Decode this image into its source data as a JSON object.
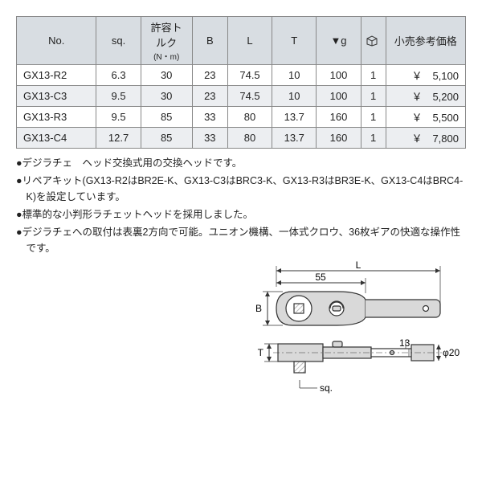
{
  "table": {
    "headers": {
      "no": "No.",
      "sq": "sq.",
      "torque": "許容トルク",
      "torque_unit": "(N・m)",
      "B": "B",
      "L": "L",
      "T": "T",
      "g": "▼g",
      "box": "☐",
      "price": "小売参考価格"
    },
    "rows": [
      {
        "no": "GX13-R2",
        "sq": "6.3",
        "torque": "30",
        "B": "23",
        "L": "74.5",
        "T": "10",
        "g": "100",
        "box": "1",
        "price": "￥　5,100",
        "alt": false
      },
      {
        "no": "GX13-C3",
        "sq": "9.5",
        "torque": "30",
        "B": "23",
        "L": "74.5",
        "T": "10",
        "g": "100",
        "box": "1",
        "price": "￥　5,200",
        "alt": true
      },
      {
        "no": "GX13-R3",
        "sq": "9.5",
        "torque": "85",
        "B": "33",
        "L": "80",
        "T": "13.7",
        "g": "160",
        "box": "1",
        "price": "￥　5,500",
        "alt": false
      },
      {
        "no": "GX13-C4",
        "sq": "12.7",
        "torque": "85",
        "B": "33",
        "L": "80",
        "T": "13.7",
        "g": "160",
        "box": "1",
        "price": "￥　7,800",
        "alt": true
      }
    ],
    "col_widths": [
      "90",
      "50",
      "58",
      "40",
      "50",
      "50",
      "50",
      "28",
      "90"
    ]
  },
  "notes": {
    "n1": "●デジラチェ　ヘッド交換式用の交換ヘッドです。",
    "n2": "●リペアキット(GX13-R2はBR2E-K、GX13-C3はBRC3-K、GX13-R3はBR3E-K、GX13-C4はBRC4-K)を設定しています。",
    "n3": "●標準的な小判形ラチェットヘッドを採用しました。",
    "n4": "●デジラチェへの取付は表裏2方向で可能。ユニオン機構、一体式クロウ、36枚ギアの快適な操作性です。"
  },
  "diagram": {
    "labels": {
      "L": "L",
      "n55": "55",
      "B": "B",
      "T": "T",
      "sq": "sq.",
      "n13": "13",
      "phi20": "φ20"
    },
    "stroke": "#333",
    "fill": "#d9d9d9",
    "hatch": "#bbb"
  }
}
